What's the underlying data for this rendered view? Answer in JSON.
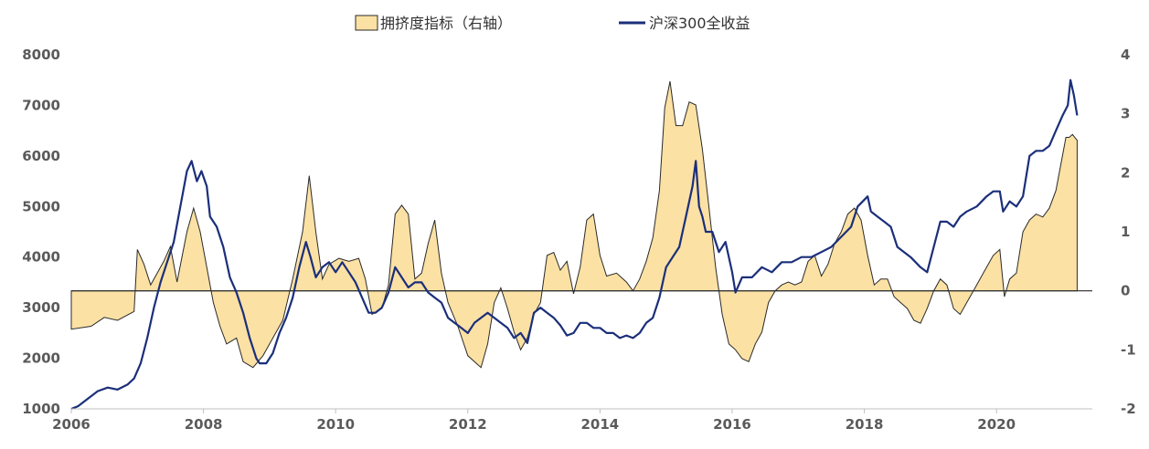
{
  "chart_data": {
    "type": "area",
    "title": "",
    "legend": {
      "position": "top",
      "items": [
        "拥挤度指标（右轴）",
        "沪深300全收益"
      ]
    },
    "x_ticks": [
      "2006",
      "2008",
      "2010",
      "2012",
      "2014",
      "2016",
      "2018",
      "2020"
    ],
    "xlim": [
      2006,
      2021.45
    ],
    "y_left": {
      "lim": [
        1000,
        8000
      ],
      "ticks": [
        "1000",
        "2000",
        "3000",
        "4000",
        "5000",
        "6000",
        "7000",
        "8000"
      ]
    },
    "y_right": {
      "lim": [
        -2,
        4
      ],
      "ticks": [
        "-2",
        "-1",
        "0",
        "1",
        "2",
        "3",
        "4"
      ]
    },
    "colors": {
      "area_fill": "#FBE1A4",
      "area_stroke": "#2a2a2a",
      "line": "#1B2F7A",
      "baseline": "#2a2a2a"
    },
    "series": [
      {
        "name": "拥挤度指标（右轴）",
        "axis": "right",
        "type": "area",
        "points": [
          [
            2006.0,
            -0.65
          ],
          [
            2006.3,
            -0.6
          ],
          [
            2006.5,
            -0.45
          ],
          [
            2006.7,
            -0.5
          ],
          [
            2006.95,
            -0.35
          ],
          [
            2007.0,
            0.7
          ],
          [
            2007.1,
            0.45
          ],
          [
            2007.2,
            0.1
          ],
          [
            2007.4,
            0.5
          ],
          [
            2007.5,
            0.75
          ],
          [
            2007.6,
            0.15
          ],
          [
            2007.75,
            1.0
          ],
          [
            2007.85,
            1.4
          ],
          [
            2007.95,
            1.0
          ],
          [
            2008.05,
            0.4
          ],
          [
            2008.15,
            -0.2
          ],
          [
            2008.25,
            -0.6
          ],
          [
            2008.35,
            -0.9
          ],
          [
            2008.5,
            -0.8
          ],
          [
            2008.6,
            -1.2
          ],
          [
            2008.75,
            -1.3
          ],
          [
            2008.9,
            -1.1
          ],
          [
            2009.05,
            -0.8
          ],
          [
            2009.2,
            -0.5
          ],
          [
            2009.35,
            0.2
          ],
          [
            2009.5,
            1.0
          ],
          [
            2009.6,
            1.95
          ],
          [
            2009.7,
            1.0
          ],
          [
            2009.8,
            0.2
          ],
          [
            2009.9,
            0.45
          ],
          [
            2010.05,
            0.55
          ],
          [
            2010.2,
            0.5
          ],
          [
            2010.35,
            0.55
          ],
          [
            2010.45,
            0.2
          ],
          [
            2010.55,
            -0.4
          ],
          [
            2010.7,
            -0.3
          ],
          [
            2010.8,
            0.1
          ],
          [
            2010.9,
            1.3
          ],
          [
            2011.0,
            1.45
          ],
          [
            2011.1,
            1.3
          ],
          [
            2011.2,
            0.2
          ],
          [
            2011.3,
            0.3
          ],
          [
            2011.4,
            0.8
          ],
          [
            2011.5,
            1.2
          ],
          [
            2011.6,
            0.3
          ],
          [
            2011.7,
            -0.2
          ],
          [
            2011.85,
            -0.6
          ],
          [
            2012.0,
            -1.1
          ],
          [
            2012.1,
            -1.2
          ],
          [
            2012.2,
            -1.3
          ],
          [
            2012.3,
            -0.9
          ],
          [
            2012.4,
            -0.2
          ],
          [
            2012.5,
            0.05
          ],
          [
            2012.6,
            -0.3
          ],
          [
            2012.7,
            -0.7
          ],
          [
            2012.8,
            -1.0
          ],
          [
            2012.9,
            -0.8
          ],
          [
            2013.0,
            -0.4
          ],
          [
            2013.1,
            -0.2
          ],
          [
            2013.2,
            0.6
          ],
          [
            2013.3,
            0.65
          ],
          [
            2013.4,
            0.35
          ],
          [
            2013.5,
            0.5
          ],
          [
            2013.6,
            -0.05
          ],
          [
            2013.7,
            0.4
          ],
          [
            2013.8,
            1.2
          ],
          [
            2013.9,
            1.3
          ],
          [
            2014.0,
            0.6
          ],
          [
            2014.1,
            0.25
          ],
          [
            2014.25,
            0.3
          ],
          [
            2014.4,
            0.15
          ],
          [
            2014.5,
            0.0
          ],
          [
            2014.6,
            0.2
          ],
          [
            2014.7,
            0.5
          ],
          [
            2014.8,
            0.9
          ],
          [
            2014.9,
            1.7
          ],
          [
            2014.98,
            3.1
          ],
          [
            2015.06,
            3.55
          ],
          [
            2015.15,
            2.8
          ],
          [
            2015.25,
            2.8
          ],
          [
            2015.35,
            3.2
          ],
          [
            2015.45,
            3.15
          ],
          [
            2015.55,
            2.4
          ],
          [
            2015.65,
            1.4
          ],
          [
            2015.75,
            0.4
          ],
          [
            2015.85,
            -0.4
          ],
          [
            2015.95,
            -0.9
          ],
          [
            2016.05,
            -1.0
          ],
          [
            2016.15,
            -1.15
          ],
          [
            2016.25,
            -1.2
          ],
          [
            2016.35,
            -0.9
          ],
          [
            2016.45,
            -0.7
          ],
          [
            2016.55,
            -0.2
          ],
          [
            2016.65,
            0.0
          ],
          [
            2016.75,
            0.1
          ],
          [
            2016.85,
            0.15
          ],
          [
            2016.95,
            0.1
          ],
          [
            2017.05,
            0.15
          ],
          [
            2017.15,
            0.5
          ],
          [
            2017.25,
            0.6
          ],
          [
            2017.35,
            0.25
          ],
          [
            2017.45,
            0.45
          ],
          [
            2017.55,
            0.8
          ],
          [
            2017.65,
            1.0
          ],
          [
            2017.75,
            1.3
          ],
          [
            2017.85,
            1.4
          ],
          [
            2017.95,
            1.2
          ],
          [
            2018.05,
            0.6
          ],
          [
            2018.15,
            0.1
          ],
          [
            2018.25,
            0.2
          ],
          [
            2018.35,
            0.2
          ],
          [
            2018.45,
            -0.1
          ],
          [
            2018.55,
            -0.2
          ],
          [
            2018.65,
            -0.3
          ],
          [
            2018.75,
            -0.5
          ],
          [
            2018.85,
            -0.55
          ],
          [
            2018.95,
            -0.3
          ],
          [
            2019.05,
            0.0
          ],
          [
            2019.15,
            0.2
          ],
          [
            2019.25,
            0.1
          ],
          [
            2019.35,
            -0.3
          ],
          [
            2019.45,
            -0.4
          ],
          [
            2019.55,
            -0.2
          ],
          [
            2019.65,
            0.0
          ],
          [
            2019.8,
            0.3
          ],
          [
            2019.95,
            0.6
          ],
          [
            2020.05,
            0.7
          ],
          [
            2020.12,
            -0.1
          ],
          [
            2020.2,
            0.2
          ],
          [
            2020.3,
            0.3
          ],
          [
            2020.4,
            1.0
          ],
          [
            2020.5,
            1.2
          ],
          [
            2020.6,
            1.3
          ],
          [
            2020.7,
            1.25
          ],
          [
            2020.8,
            1.4
          ],
          [
            2020.9,
            1.7
          ],
          [
            2021.0,
            2.3
          ],
          [
            2021.05,
            2.6
          ],
          [
            2021.1,
            2.6
          ],
          [
            2021.15,
            2.65
          ],
          [
            2021.22,
            2.55
          ],
          [
            2021.22,
            0.0
          ]
        ]
      },
      {
        "name": "沪深300全收益",
        "axis": "left",
        "type": "line",
        "points": [
          [
            2006.0,
            1000
          ],
          [
            2006.1,
            1050
          ],
          [
            2006.25,
            1200
          ],
          [
            2006.4,
            1350
          ],
          [
            2006.55,
            1420
          ],
          [
            2006.7,
            1380
          ],
          [
            2006.85,
            1480
          ],
          [
            2006.95,
            1600
          ],
          [
            2007.05,
            1900
          ],
          [
            2007.15,
            2400
          ],
          [
            2007.25,
            3000
          ],
          [
            2007.35,
            3500
          ],
          [
            2007.45,
            3900
          ],
          [
            2007.55,
            4300
          ],
          [
            2007.65,
            5000
          ],
          [
            2007.75,
            5700
          ],
          [
            2007.82,
            5900
          ],
          [
            2007.9,
            5500
          ],
          [
            2007.97,
            5700
          ],
          [
            2008.05,
            5400
          ],
          [
            2008.1,
            4800
          ],
          [
            2008.2,
            4600
          ],
          [
            2008.3,
            4200
          ],
          [
            2008.4,
            3600
          ],
          [
            2008.5,
            3300
          ],
          [
            2008.6,
            2900
          ],
          [
            2008.7,
            2400
          ],
          [
            2008.8,
            2000
          ],
          [
            2008.85,
            1900
          ],
          [
            2008.95,
            1900
          ],
          [
            2009.05,
            2100
          ],
          [
            2009.15,
            2500
          ],
          [
            2009.25,
            2800
          ],
          [
            2009.35,
            3200
          ],
          [
            2009.45,
            3800
          ],
          [
            2009.55,
            4300
          ],
          [
            2009.62,
            4000
          ],
          [
            2009.7,
            3600
          ],
          [
            2009.8,
            3800
          ],
          [
            2009.9,
            3900
          ],
          [
            2010.0,
            3700
          ],
          [
            2010.1,
            3900
          ],
          [
            2010.2,
            3700
          ],
          [
            2010.3,
            3500
          ],
          [
            2010.4,
            3200
          ],
          [
            2010.5,
            2900
          ],
          [
            2010.6,
            2900
          ],
          [
            2010.7,
            3000
          ],
          [
            2010.8,
            3300
          ],
          [
            2010.9,
            3800
          ],
          [
            2011.0,
            3600
          ],
          [
            2011.1,
            3400
          ],
          [
            2011.2,
            3500
          ],
          [
            2011.3,
            3500
          ],
          [
            2011.4,
            3300
          ],
          [
            2011.5,
            3200
          ],
          [
            2011.6,
            3100
          ],
          [
            2011.7,
            2800
          ],
          [
            2011.8,
            2700
          ],
          [
            2011.9,
            2600
          ],
          [
            2012.0,
            2500
          ],
          [
            2012.1,
            2700
          ],
          [
            2012.2,
            2800
          ],
          [
            2012.3,
            2900
          ],
          [
            2012.4,
            2800
          ],
          [
            2012.5,
            2700
          ],
          [
            2012.6,
            2600
          ],
          [
            2012.7,
            2400
          ],
          [
            2012.8,
            2500
          ],
          [
            2012.9,
            2300
          ],
          [
            2013.0,
            2900
          ],
          [
            2013.1,
            3000
          ],
          [
            2013.2,
            2900
          ],
          [
            2013.3,
            2800
          ],
          [
            2013.4,
            2650
          ],
          [
            2013.5,
            2450
          ],
          [
            2013.6,
            2500
          ],
          [
            2013.7,
            2700
          ],
          [
            2013.8,
            2700
          ],
          [
            2013.9,
            2600
          ],
          [
            2014.0,
            2600
          ],
          [
            2014.1,
            2500
          ],
          [
            2014.2,
            2500
          ],
          [
            2014.3,
            2400
          ],
          [
            2014.4,
            2450
          ],
          [
            2014.5,
            2400
          ],
          [
            2014.6,
            2500
          ],
          [
            2014.7,
            2700
          ],
          [
            2014.8,
            2800
          ],
          [
            2014.9,
            3200
          ],
          [
            2015.0,
            3800
          ],
          [
            2015.1,
            4000
          ],
          [
            2015.2,
            4200
          ],
          [
            2015.3,
            4800
          ],
          [
            2015.4,
            5400
          ],
          [
            2015.45,
            5900
          ],
          [
            2015.5,
            5000
          ],
          [
            2015.55,
            4800
          ],
          [
            2015.6,
            4500
          ],
          [
            2015.7,
            4500
          ],
          [
            2015.75,
            4300
          ],
          [
            2015.8,
            4100
          ],
          [
            2015.9,
            4300
          ],
          [
            2016.0,
            3700
          ],
          [
            2016.05,
            3300
          ],
          [
            2016.15,
            3600
          ],
          [
            2016.3,
            3600
          ],
          [
            2016.45,
            3800
          ],
          [
            2016.6,
            3700
          ],
          [
            2016.75,
            3900
          ],
          [
            2016.9,
            3900
          ],
          [
            2017.05,
            4000
          ],
          [
            2017.2,
            4000
          ],
          [
            2017.35,
            4100
          ],
          [
            2017.5,
            4200
          ],
          [
            2017.65,
            4400
          ],
          [
            2017.8,
            4600
          ],
          [
            2017.9,
            5000
          ],
          [
            2018.05,
            5200
          ],
          [
            2018.1,
            4900
          ],
          [
            2018.2,
            4800
          ],
          [
            2018.3,
            4700
          ],
          [
            2018.4,
            4600
          ],
          [
            2018.5,
            4200
          ],
          [
            2018.6,
            4100
          ],
          [
            2018.7,
            4000
          ],
          [
            2018.85,
            3800
          ],
          [
            2018.95,
            3700
          ],
          [
            2019.05,
            4200
          ],
          [
            2019.15,
            4700
          ],
          [
            2019.25,
            4700
          ],
          [
            2019.35,
            4600
          ],
          [
            2019.45,
            4800
          ],
          [
            2019.55,
            4900
          ],
          [
            2019.7,
            5000
          ],
          [
            2019.85,
            5200
          ],
          [
            2019.95,
            5300
          ],
          [
            2020.05,
            5300
          ],
          [
            2020.1,
            4900
          ],
          [
            2020.2,
            5100
          ],
          [
            2020.3,
            5000
          ],
          [
            2020.4,
            5200
          ],
          [
            2020.5,
            6000
          ],
          [
            2020.6,
            6100
          ],
          [
            2020.7,
            6100
          ],
          [
            2020.8,
            6200
          ],
          [
            2020.9,
            6500
          ],
          [
            2021.0,
            6800
          ],
          [
            2021.08,
            7000
          ],
          [
            2021.12,
            7500
          ],
          [
            2021.17,
            7200
          ],
          [
            2021.22,
            6800
          ]
        ]
      }
    ]
  }
}
